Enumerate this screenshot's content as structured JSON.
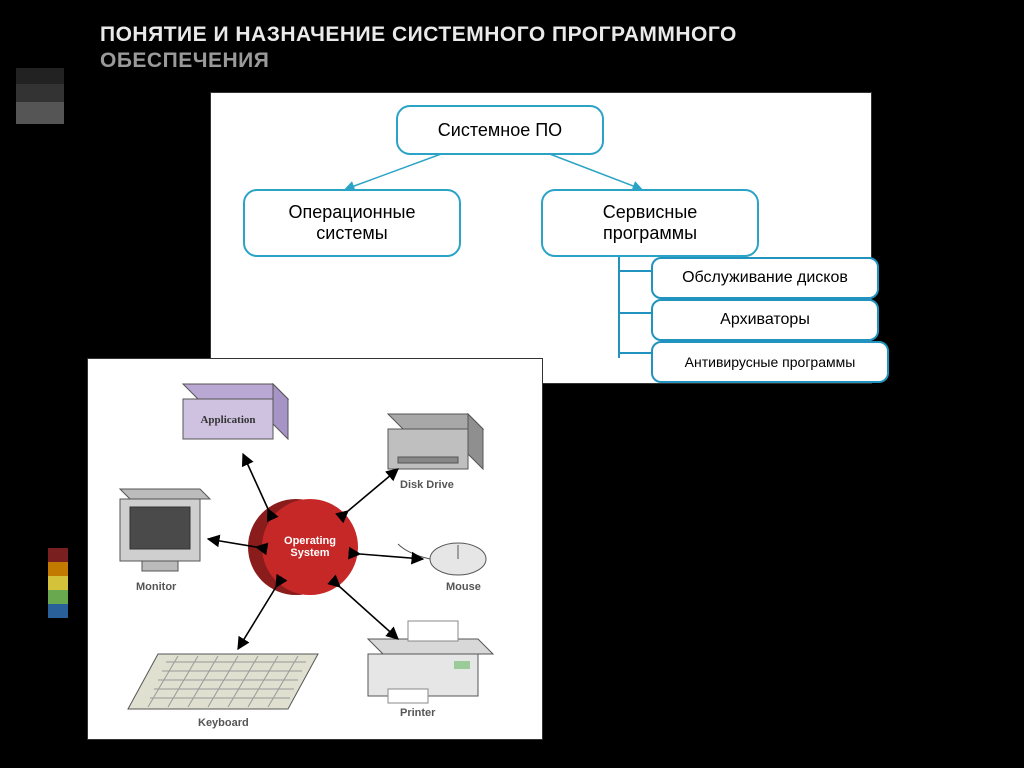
{
  "title_line1": "ПОНЯТИЕ И НАЗНАЧЕНИЕ СИСТЕМНОГО ПРОГРАММНОГО",
  "title_line2": "ОБЕСПЕЧЕНИЯ",
  "accent_bars": [
    {
      "h": 16,
      "color": "#222222"
    },
    {
      "h": 18,
      "color": "#333333"
    },
    {
      "h": 22,
      "color": "#555555"
    }
  ],
  "side_bars": [
    "#7a1f1f",
    "#c27a00",
    "#d4c23a",
    "#6aa84f",
    "#2a6099"
  ],
  "hierarchy": {
    "root": "Системное ПО",
    "left": "Операционные\nсистемы",
    "right": "Сервисные\nпрограммы",
    "subs": [
      "Обслуживание дисков",
      "Архиваторы",
      "Антивирусные программы"
    ],
    "border_color": "#2aa3c7",
    "line_color": "#2aa3c7",
    "bracket_color": "#2292be",
    "font_size_main": 18,
    "font_size_sub": 16
  },
  "os_diagram": {
    "center_label": "Operating\nSystem",
    "center_fill": "#c62828",
    "center_shadow": "#8a1c1c",
    "devices": {
      "application": {
        "label": "Application",
        "box_fill": "#cfc2e0",
        "box_stroke": "#555"
      },
      "diskdrive": {
        "label": "Disk Drive",
        "box_fill": "#bfbfbf",
        "box_stroke": "#555"
      },
      "monitor": {
        "label": "Monitor",
        "box_fill": "#cfcfcf",
        "box_stroke": "#555"
      },
      "mouse": {
        "label": "Mouse",
        "box_fill": "#e6e6e6",
        "box_stroke": "#555"
      },
      "keyboard": {
        "label": "Keyboard",
        "box_fill": "#e0e0d0",
        "box_stroke": "#555"
      },
      "printer": {
        "label": "Printer",
        "box_fill": "#e6e6e6",
        "box_stroke": "#555"
      }
    },
    "arrow_color": "#000000"
  }
}
